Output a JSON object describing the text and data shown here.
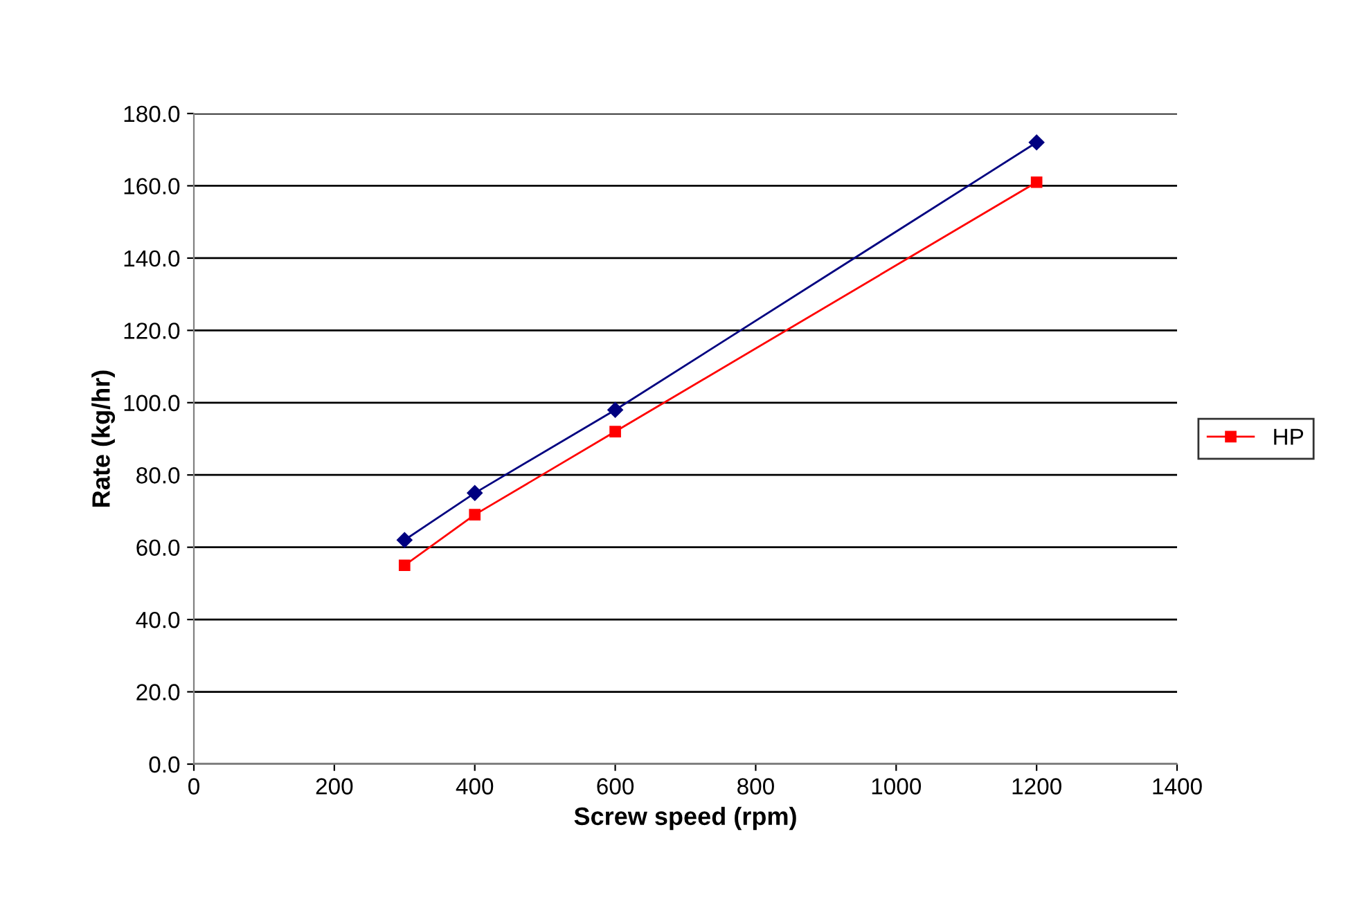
{
  "chart_data": {
    "type": "line",
    "xlabel": "Screw speed (rpm)",
    "ylabel": "Rate (kg/hr)",
    "x": [
      300,
      400,
      600,
      1200
    ],
    "series": [
      {
        "color": "#000080",
        "marker": "diamond",
        "values": [
          62,
          75,
          98,
          172
        ]
      },
      {
        "name": "HP",
        "color": "#ff0000",
        "marker": "square",
        "values": [
          55,
          69,
          92,
          161
        ]
      }
    ],
    "xlim": [
      0,
      1400
    ],
    "xticks": [
      0,
      200,
      400,
      600,
      800,
      1000,
      1200,
      1400
    ],
    "ylim": [
      0,
      180
    ],
    "yticks": [
      {
        "value": 0,
        "label": "0.0"
      },
      {
        "value": 20,
        "label": "20.0"
      },
      {
        "value": 40,
        "label": "40.0"
      },
      {
        "value": 60,
        "label": "60.0"
      },
      {
        "value": 80,
        "label": "80.0"
      },
      {
        "value": 100,
        "label": "100.0"
      },
      {
        "value": 120,
        "label": "120.0"
      },
      {
        "value": 140,
        "label": "140.0"
      },
      {
        "value": 160,
        "label": "160.0"
      },
      {
        "value": 180,
        "label": "180.0"
      }
    ],
    "grid": "y",
    "legend": "right",
    "line_style": "solid"
  }
}
